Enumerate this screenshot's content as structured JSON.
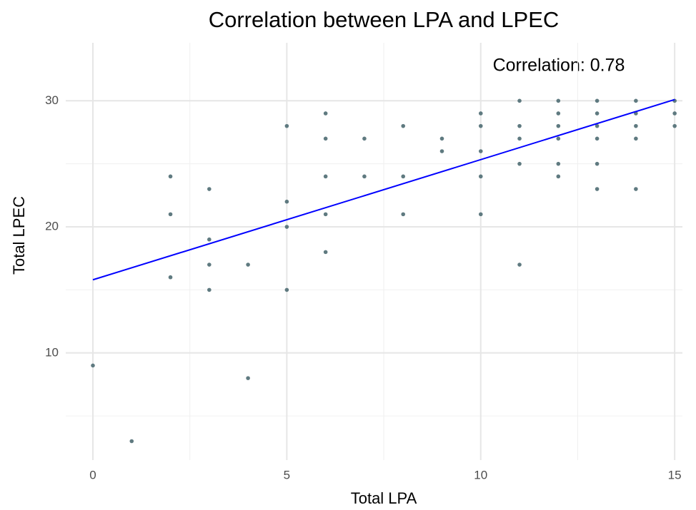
{
  "chart_data": {
    "type": "scatter",
    "title": "Correlation between LPA and LPEC",
    "annotation": "Correlation: 0.78",
    "xlabel": "Total LPA",
    "ylabel": "Total LPEC",
    "xlim": [
      -0.7,
      15.2
    ],
    "ylim": [
      1.5,
      34.6
    ],
    "xticks": [
      0,
      5,
      10,
      15
    ],
    "yticks": [
      10,
      20,
      30
    ],
    "xminor": [
      2.5,
      7.5,
      12.5
    ],
    "yminor": [
      5,
      15,
      25
    ],
    "grid": true,
    "series": [
      {
        "color": "#5f7a80",
        "x": [
          0,
          1,
          2,
          2,
          2,
          3,
          3,
          3,
          3,
          4,
          4,
          5,
          5,
          5,
          5,
          6,
          6,
          6,
          6,
          6,
          7,
          7,
          8,
          8,
          8,
          9,
          9,
          10,
          10,
          10,
          10,
          10,
          11,
          11,
          11,
          11,
          11,
          12,
          12,
          12,
          12,
          12,
          12,
          13,
          13,
          13,
          13,
          13,
          13,
          14,
          14,
          14,
          14,
          14,
          15,
          15,
          15
        ],
        "values": [
          9,
          3,
          24,
          21,
          16,
          23,
          19,
          17,
          15,
          17,
          8,
          28,
          22,
          20,
          15,
          29,
          27,
          24,
          21,
          18,
          27,
          24,
          28,
          24,
          21,
          27,
          26,
          29,
          28,
          26,
          24,
          21,
          30,
          28,
          27,
          25,
          17,
          30,
          29,
          28,
          27,
          25,
          24,
          30,
          29,
          28,
          27,
          25,
          23,
          30,
          29,
          28,
          27,
          23,
          30,
          29,
          28
        ]
      }
    ],
    "trend": {
      "color": "#0000ff",
      "x": [
        0,
        15
      ],
      "values": [
        15.8,
        30.1
      ]
    }
  }
}
